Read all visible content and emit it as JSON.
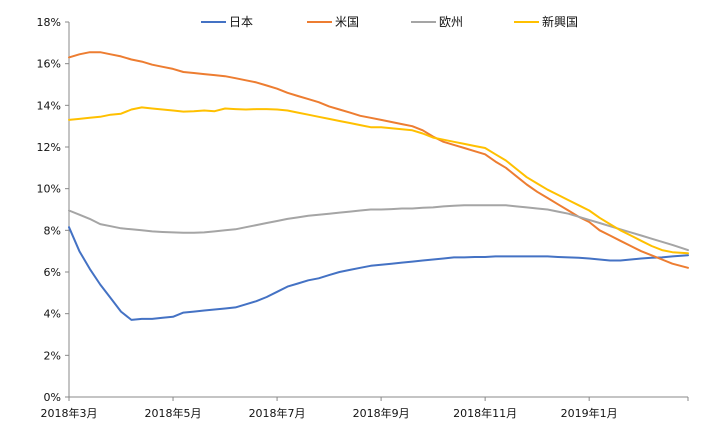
{
  "chart_data": {
    "type": "line",
    "title": "",
    "xlabel": "",
    "ylabel": "",
    "ylim": [
      0,
      18
    ],
    "y_ticks": [
      "0%",
      "2%",
      "4%",
      "6%",
      "8%",
      "10%",
      "12%",
      "14%",
      "16%",
      "18%"
    ],
    "x_tick_labels": [
      "2018年3月",
      "2018年5月",
      "2018年7月",
      "2018年9月",
      "2018年11月",
      "2019年1月"
    ],
    "x_tick_week": [
      0,
      20,
      40,
      60,
      80,
      100
    ],
    "x_range_week": [
      0,
      119
    ],
    "grid": false,
    "legend_position": "top",
    "series": [
      {
        "name": "日本",
        "color": "#4472C4",
        "x": [
          0,
          2,
          4,
          6,
          8,
          10,
          12,
          14,
          16,
          18,
          20,
          22,
          24,
          26,
          28,
          30,
          32,
          34,
          36,
          38,
          40,
          42,
          44,
          46,
          48,
          50,
          52,
          54,
          56,
          58,
          60,
          62,
          64,
          66,
          68,
          70,
          72,
          74,
          76,
          78,
          80,
          82,
          84,
          86,
          88,
          90,
          92,
          94,
          96,
          98,
          100,
          102,
          104,
          106,
          108,
          110,
          112,
          114,
          116,
          119
        ],
        "values": [
          8.15,
          7.0,
          6.15,
          5.4,
          4.75,
          4.1,
          3.7,
          3.75,
          3.75,
          3.8,
          3.85,
          4.05,
          4.1,
          4.15,
          4.2,
          4.25,
          4.3,
          4.45,
          4.6,
          4.8,
          5.05,
          5.3,
          5.45,
          5.6,
          5.7,
          5.85,
          6.0,
          6.1,
          6.2,
          6.3,
          6.35,
          6.4,
          6.45,
          6.5,
          6.55,
          6.6,
          6.65,
          6.7,
          6.7,
          6.72,
          6.72,
          6.75,
          6.75,
          6.75,
          6.75,
          6.75,
          6.75,
          6.72,
          6.7,
          6.68,
          6.65,
          6.6,
          6.55,
          6.55,
          6.6,
          6.65,
          6.68,
          6.7,
          6.75,
          6.8
        ]
      },
      {
        "name": "米国",
        "color": "#ED7D31",
        "x": [
          0,
          2,
          4,
          6,
          8,
          10,
          12,
          14,
          16,
          18,
          20,
          22,
          24,
          26,
          28,
          30,
          32,
          34,
          36,
          38,
          40,
          42,
          44,
          46,
          48,
          50,
          52,
          54,
          56,
          58,
          60,
          62,
          64,
          66,
          68,
          70,
          72,
          74,
          76,
          78,
          80,
          82,
          84,
          86,
          88,
          90,
          92,
          94,
          96,
          98,
          100,
          102,
          104,
          106,
          108,
          110,
          112,
          114,
          116,
          119
        ],
        "values": [
          16.3,
          16.45,
          16.55,
          16.55,
          16.45,
          16.35,
          16.2,
          16.1,
          15.95,
          15.85,
          15.75,
          15.6,
          15.55,
          15.5,
          15.45,
          15.4,
          15.3,
          15.2,
          15.1,
          14.95,
          14.8,
          14.6,
          14.45,
          14.3,
          14.15,
          13.95,
          13.8,
          13.65,
          13.5,
          13.4,
          13.3,
          13.2,
          13.1,
          13.0,
          12.8,
          12.5,
          12.25,
          12.1,
          11.95,
          11.8,
          11.65,
          11.3,
          11.0,
          10.6,
          10.2,
          9.85,
          9.55,
          9.25,
          8.95,
          8.65,
          8.4,
          8.0,
          7.75,
          7.5,
          7.25,
          7.0,
          6.8,
          6.6,
          6.4,
          6.2
        ]
      },
      {
        "name": "欧州",
        "color": "#A5A5A5",
        "x": [
          0,
          2,
          4,
          6,
          8,
          10,
          12,
          14,
          16,
          18,
          20,
          22,
          24,
          26,
          28,
          30,
          32,
          34,
          36,
          38,
          40,
          42,
          44,
          46,
          48,
          50,
          52,
          54,
          56,
          58,
          60,
          62,
          64,
          66,
          68,
          70,
          72,
          74,
          76,
          78,
          80,
          82,
          84,
          86,
          88,
          90,
          92,
          94,
          96,
          98,
          100,
          102,
          104,
          106,
          108,
          110,
          112,
          114,
          116,
          119
        ],
        "values": [
          8.95,
          8.75,
          8.55,
          8.3,
          8.2,
          8.1,
          8.05,
          8.0,
          7.95,
          7.92,
          7.9,
          7.88,
          7.88,
          7.9,
          7.95,
          8.0,
          8.05,
          8.15,
          8.25,
          8.35,
          8.45,
          8.55,
          8.62,
          8.7,
          8.75,
          8.8,
          8.85,
          8.9,
          8.95,
          9.0,
          9.0,
          9.02,
          9.05,
          9.05,
          9.08,
          9.1,
          9.15,
          9.18,
          9.2,
          9.2,
          9.2,
          9.2,
          9.2,
          9.15,
          9.1,
          9.05,
          9.0,
          8.9,
          8.8,
          8.65,
          8.5,
          8.35,
          8.2,
          8.05,
          7.9,
          7.75,
          7.6,
          7.45,
          7.3,
          7.05
        ]
      },
      {
        "name": "新興国",
        "color": "#FFC000",
        "x": [
          0,
          2,
          4,
          6,
          8,
          10,
          12,
          14,
          16,
          18,
          20,
          22,
          24,
          26,
          28,
          30,
          32,
          34,
          36,
          38,
          40,
          42,
          44,
          46,
          48,
          50,
          52,
          54,
          56,
          58,
          60,
          62,
          64,
          66,
          68,
          70,
          72,
          74,
          76,
          78,
          80,
          82,
          84,
          86,
          88,
          90,
          92,
          94,
          96,
          98,
          100,
          102,
          104,
          106,
          108,
          110,
          112,
          114,
          116,
          119
        ],
        "values": [
          13.3,
          13.35,
          13.4,
          13.45,
          13.55,
          13.6,
          13.8,
          13.9,
          13.85,
          13.8,
          13.75,
          13.7,
          13.72,
          13.75,
          13.72,
          13.85,
          13.82,
          13.8,
          13.82,
          13.82,
          13.8,
          13.75,
          13.65,
          13.55,
          13.45,
          13.35,
          13.25,
          13.15,
          13.05,
          12.95,
          12.95,
          12.9,
          12.85,
          12.8,
          12.65,
          12.45,
          12.35,
          12.25,
          12.15,
          12.05,
          11.95,
          11.65,
          11.35,
          10.95,
          10.55,
          10.25,
          9.95,
          9.7,
          9.45,
          9.2,
          8.95,
          8.6,
          8.3,
          8.0,
          7.75,
          7.5,
          7.25,
          7.05,
          6.95,
          6.9
        ]
      }
    ]
  }
}
